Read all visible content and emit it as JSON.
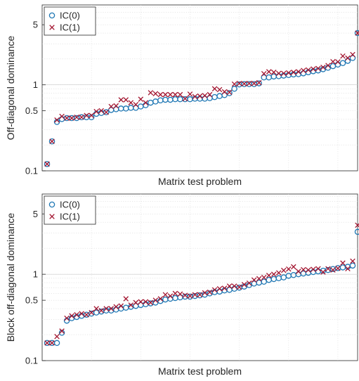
{
  "chart_data": [
    {
      "type": "scatter",
      "xlabel": "Matrix test problem",
      "ylabel": "Off-diagonal dominance",
      "yscale": "log",
      "ylim": [
        0.1,
        8.5
      ],
      "xlim": [
        0,
        64
      ],
      "yticks": [
        0.1,
        0.5,
        1,
        5
      ],
      "ytick_labels": [
        "0.1",
        "0.5",
        "1",
        "5"
      ],
      "grid": true,
      "legend_position": "top-left",
      "series": [
        {
          "name": "IC(0)",
          "marker": "circle",
          "color": "#1f77b4",
          "x": [
            1,
            2,
            3,
            4,
            5,
            6,
            7,
            8,
            9,
            10,
            11,
            12,
            13,
            14,
            15,
            16,
            17,
            18,
            19,
            20,
            21,
            22,
            23,
            24,
            25,
            26,
            27,
            28,
            29,
            30,
            31,
            32,
            33,
            34,
            35,
            36,
            37,
            38,
            39,
            40,
            41,
            42,
            43,
            44,
            45,
            46,
            47,
            48,
            49,
            50,
            51,
            52,
            53,
            54,
            55,
            56,
            57,
            58,
            59,
            60,
            61,
            62,
            63,
            64
          ],
          "y": [
            0.12,
            0.22,
            0.37,
            0.4,
            0.41,
            0.41,
            0.41,
            0.42,
            0.42,
            0.42,
            0.46,
            0.47,
            0.48,
            0.51,
            0.52,
            0.53,
            0.53,
            0.54,
            0.54,
            0.56,
            0.58,
            0.62,
            0.64,
            0.66,
            0.67,
            0.67,
            0.68,
            0.68,
            0.68,
            0.68,
            0.69,
            0.69,
            0.69,
            0.7,
            0.72,
            0.74,
            0.76,
            0.8,
            0.9,
            1.01,
            1.02,
            1.02,
            1.02,
            1.04,
            1.22,
            1.22,
            1.25,
            1.26,
            1.28,
            1.3,
            1.32,
            1.33,
            1.36,
            1.4,
            1.44,
            1.47,
            1.52,
            1.58,
            1.65,
            1.72,
            1.79,
            1.9,
            2.05,
            4.0
          ]
        },
        {
          "name": "IC(1)",
          "marker": "x",
          "color": "#a2142f",
          "x": [
            1,
            2,
            3,
            4,
            5,
            6,
            7,
            8,
            9,
            10,
            11,
            12,
            13,
            14,
            15,
            16,
            17,
            18,
            19,
            20,
            21,
            22,
            23,
            24,
            25,
            26,
            27,
            28,
            29,
            30,
            31,
            32,
            33,
            34,
            35,
            36,
            37,
            38,
            39,
            40,
            41,
            42,
            43,
            44,
            45,
            46,
            47,
            48,
            49,
            50,
            51,
            52,
            53,
            54,
            55,
            56,
            57,
            58,
            59,
            60,
            61,
            62,
            63,
            64
          ],
          "y": [
            0.12,
            0.22,
            0.39,
            0.43,
            0.41,
            0.41,
            0.42,
            0.42,
            0.44,
            0.44,
            0.49,
            0.5,
            0.48,
            0.56,
            0.57,
            0.67,
            0.67,
            0.62,
            0.59,
            0.68,
            0.62,
            0.81,
            0.79,
            0.77,
            0.77,
            0.77,
            0.77,
            0.77,
            0.69,
            0.78,
            0.73,
            0.74,
            0.75,
            0.77,
            0.9,
            0.88,
            0.83,
            0.82,
            1.02,
            1.04,
            1.03,
            1.04,
            1.04,
            1.06,
            1.35,
            1.42,
            1.4,
            1.36,
            1.36,
            1.38,
            1.4,
            1.42,
            1.47,
            1.49,
            1.53,
            1.55,
            1.6,
            1.68,
            1.86,
            1.85,
            2.16,
            2.05,
            2.25,
            4.0
          ]
        }
      ],
      "extra_points_note": ""
    },
    {
      "type": "scatter",
      "xlabel": "Matrix test problem",
      "ylabel": "Block off-diagonal dominance",
      "yscale": "log",
      "ylim": [
        0.1,
        8.5
      ],
      "xlim": [
        0,
        64
      ],
      "yticks": [
        0.1,
        0.5,
        1,
        5
      ],
      "ytick_labels": [
        "0.1",
        "0.5",
        "1",
        "5"
      ],
      "grid": true,
      "legend_position": "top-left",
      "series": [
        {
          "name": "IC(0)",
          "marker": "circle",
          "color": "#1f77b4",
          "x": [
            1,
            2,
            3,
            4,
            5,
            6,
            7,
            8,
            9,
            10,
            11,
            12,
            13,
            14,
            15,
            16,
            17,
            18,
            19,
            20,
            21,
            22,
            23,
            24,
            25,
            26,
            27,
            28,
            29,
            30,
            31,
            32,
            33,
            34,
            35,
            36,
            37,
            38,
            39,
            40,
            41,
            42,
            43,
            44,
            45,
            46,
            47,
            48,
            49,
            50,
            51,
            52,
            53,
            54,
            55,
            56,
            57,
            58,
            59,
            60,
            61,
            62,
            63,
            64
          ],
          "y": [
            0.16,
            0.16,
            0.16,
            0.21,
            0.29,
            0.31,
            0.32,
            0.33,
            0.34,
            0.35,
            0.36,
            0.37,
            0.38,
            0.38,
            0.39,
            0.4,
            0.41,
            0.42,
            0.43,
            0.44,
            0.45,
            0.46,
            0.47,
            0.49,
            0.51,
            0.52,
            0.53,
            0.54,
            0.55,
            0.55,
            0.56,
            0.57,
            0.58,
            0.6,
            0.62,
            0.63,
            0.65,
            0.66,
            0.68,
            0.7,
            0.72,
            0.75,
            0.78,
            0.8,
            0.82,
            0.86,
            0.88,
            0.9,
            0.92,
            0.96,
            0.98,
            1.0,
            1.02,
            1.04,
            1.06,
            1.08,
            1.1,
            1.12,
            1.15,
            1.18,
            1.2,
            1.22,
            1.26,
            3.1
          ]
        },
        {
          "name": "IC(1)",
          "marker": "x",
          "color": "#a2142f",
          "x": [
            1,
            2,
            3,
            4,
            5,
            6,
            7,
            8,
            9,
            10,
            11,
            12,
            13,
            14,
            15,
            16,
            17,
            18,
            19,
            20,
            21,
            22,
            23,
            24,
            25,
            26,
            27,
            28,
            29,
            30,
            31,
            32,
            33,
            34,
            35,
            36,
            37,
            38,
            39,
            40,
            41,
            42,
            43,
            44,
            45,
            46,
            47,
            48,
            49,
            50,
            51,
            52,
            53,
            54,
            55,
            56,
            57,
            58,
            59,
            60,
            61,
            62,
            63,
            64
          ],
          "y": [
            0.16,
            0.16,
            0.19,
            0.22,
            0.31,
            0.33,
            0.34,
            0.35,
            0.34,
            0.36,
            0.4,
            0.38,
            0.4,
            0.4,
            0.42,
            0.43,
            0.52,
            0.44,
            0.47,
            0.48,
            0.48,
            0.47,
            0.5,
            0.52,
            0.58,
            0.56,
            0.6,
            0.59,
            0.57,
            0.56,
            0.58,
            0.58,
            0.61,
            0.62,
            0.66,
            0.68,
            0.69,
            0.73,
            0.73,
            0.71,
            0.76,
            0.79,
            0.86,
            0.89,
            0.92,
            0.97,
            1.0,
            1.04,
            1.11,
            1.15,
            1.22,
            1.08,
            1.13,
            1.12,
            1.14,
            1.16,
            1.06,
            1.16,
            1.12,
            1.17,
            1.35,
            1.16,
            1.42,
            3.7
          ]
        }
      ],
      "extra_points_note": ""
    }
  ]
}
